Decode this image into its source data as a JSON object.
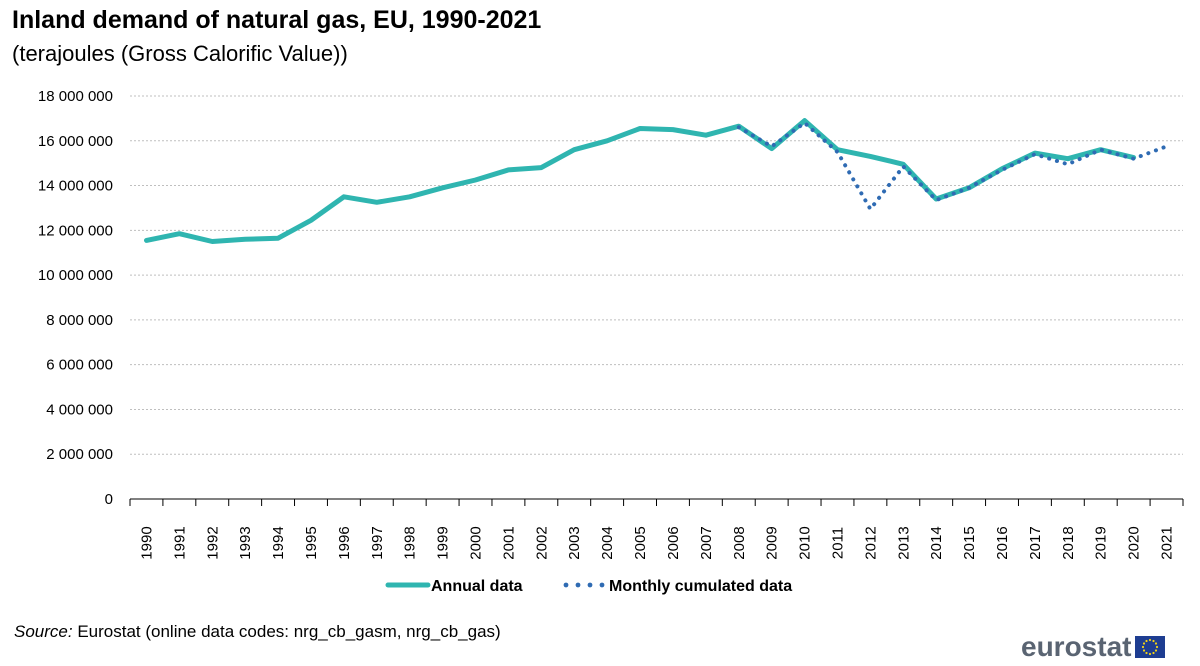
{
  "header": {
    "title": "Inland demand of natural gas, EU, 1990-2021",
    "subtitle": "(terajoules (Gross Calorific Value))"
  },
  "footer": {
    "source_label": "Source:",
    "source_text": " Eurostat (online data codes: nrg_cb_gasm, nrg_cb_gas)",
    "logo_text": "eurostat"
  },
  "colors": {
    "annual": "#2fb5b0",
    "monthly": "#2f6bb3",
    "grid": "#bfbfbf"
  },
  "chart_data": {
    "type": "line",
    "title": "Inland demand of natural gas, EU, 1990-2021",
    "subtitle": "(terajoules (Gross Calorific Value))",
    "xlabel": "",
    "ylabel": "",
    "ylim": [
      0,
      18000000
    ],
    "yticks": [
      0,
      2000000,
      4000000,
      6000000,
      8000000,
      10000000,
      12000000,
      14000000,
      16000000,
      18000000
    ],
    "ytick_labels": [
      "0",
      "2 000 000",
      "4 000 000",
      "6 000 000",
      "8 000 000",
      "10 000 000",
      "12 000 000",
      "14 000 000",
      "16 000 000",
      "18 000 000"
    ],
    "categories": [
      "1990",
      "1991",
      "1992",
      "1993",
      "1994",
      "1995",
      "1996",
      "1997",
      "1998",
      "1999",
      "2000",
      "2001",
      "2002",
      "2003",
      "2004",
      "2005",
      "2006",
      "2007",
      "2008",
      "2009",
      "2010",
      "2011",
      "2012",
      "2013",
      "2014",
      "2015",
      "2016",
      "2017",
      "2018",
      "2019",
      "2020",
      "2021"
    ],
    "grid": true,
    "legend_position": "bottom",
    "series": [
      {
        "name": "Annual data",
        "style": "solid",
        "values": [
          11550000,
          11850000,
          11500000,
          11600000,
          11650000,
          12450000,
          13500000,
          13250000,
          13500000,
          13900000,
          14250000,
          14700000,
          14800000,
          15600000,
          16000000,
          16550000,
          16500000,
          16250000,
          16650000,
          15650000,
          16900000,
          15600000,
          15300000,
          14950000,
          13400000,
          13900000,
          14750000,
          15450000,
          15200000,
          15600000,
          15250000,
          null
        ]
      },
      {
        "name": "Monthly cumulated data",
        "style": "dotted",
        "values": [
          null,
          null,
          null,
          null,
          null,
          null,
          null,
          null,
          null,
          null,
          null,
          null,
          null,
          null,
          null,
          null,
          null,
          null,
          16600000,
          15750000,
          16800000,
          15500000,
          12950000,
          14850000,
          13350000,
          13900000,
          14700000,
          15400000,
          14950000,
          15600000,
          15200000,
          15750000
        ]
      }
    ]
  }
}
